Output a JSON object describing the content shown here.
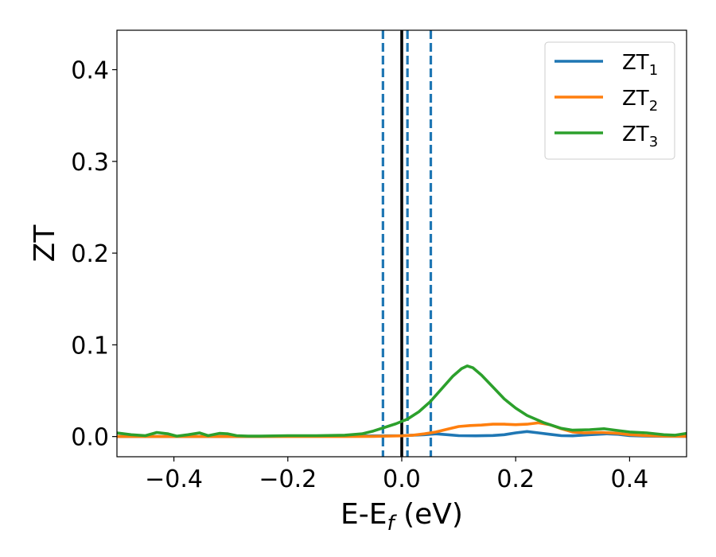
{
  "chart_data": {
    "type": "line",
    "xlabel": {
      "base": "E-E",
      "sub": "f",
      "unit": " (eV)"
    },
    "ylabel": "ZT",
    "xlim": [
      -0.5,
      0.5
    ],
    "ylim": [
      -0.022,
      0.443
    ],
    "xticks": [
      -0.4,
      -0.2,
      0.0,
      0.2,
      0.4
    ],
    "xtick_labels": [
      "−0.4",
      "−0.2",
      "0.0",
      "0.2",
      "0.4"
    ],
    "yticks": [
      0.0,
      0.1,
      0.2,
      0.3,
      0.4
    ],
    "ytick_labels": [
      "0.0",
      "0.1",
      "0.2",
      "0.3",
      "0.4"
    ],
    "grid": false,
    "legend_position": "top-right",
    "vertical_lines": [
      {
        "x": -0.033,
        "style": "dashed",
        "color": "#1f77b4"
      },
      {
        "x": 0.01,
        "style": "dashed",
        "color": "#1f77b4"
      },
      {
        "x": 0.051,
        "style": "dashed",
        "color": "#1f77b4"
      },
      {
        "x": 0.0,
        "style": "solid",
        "color": "#000000"
      }
    ],
    "series": [
      {
        "name": "ZT",
        "sub": "1",
        "color": "#1f77b4",
        "x": [
          -0.5,
          -0.45,
          -0.4,
          -0.35,
          -0.3,
          -0.25,
          -0.2,
          -0.15,
          -0.1,
          -0.05,
          0.0,
          0.02,
          0.04,
          0.06,
          0.08,
          0.1,
          0.13,
          0.16,
          0.18,
          0.2,
          0.22,
          0.24,
          0.26,
          0.28,
          0.3,
          0.33,
          0.36,
          0.38,
          0.4,
          0.43,
          0.46,
          0.5
        ],
        "y": [
          0.0,
          0.0,
          0.0,
          0.0,
          0.0,
          0.0,
          0.0005,
          0.0005,
          0.0005,
          0.0007,
          0.001,
          0.0015,
          0.002,
          0.003,
          0.002,
          0.001,
          0.0008,
          0.0012,
          0.002,
          0.004,
          0.0055,
          0.004,
          0.0025,
          0.001,
          0.0008,
          0.002,
          0.003,
          0.0025,
          0.001,
          0.0005,
          0.0003,
          0.0002
        ]
      },
      {
        "name": "ZT",
        "sub": "2",
        "color": "#ff7f0e",
        "x": [
          -0.5,
          -0.45,
          -0.4,
          -0.35,
          -0.3,
          -0.25,
          -0.2,
          -0.15,
          -0.1,
          -0.05,
          0.0,
          0.02,
          0.04,
          0.06,
          0.08,
          0.1,
          0.12,
          0.14,
          0.16,
          0.18,
          0.2,
          0.22,
          0.24,
          0.26,
          0.28,
          0.3,
          0.32,
          0.35,
          0.38,
          0.4,
          0.43,
          0.46,
          0.5
        ],
        "y": [
          0.0,
          0.0,
          0.0,
          0.0,
          0.0,
          0.0,
          0.0,
          0.0,
          0.0,
          0.0002,
          0.0008,
          0.0015,
          0.003,
          0.005,
          0.008,
          0.011,
          0.012,
          0.0125,
          0.0135,
          0.0135,
          0.013,
          0.0135,
          0.015,
          0.013,
          0.0085,
          0.005,
          0.004,
          0.0045,
          0.0035,
          0.002,
          0.001,
          0.0005,
          0.0003
        ]
      },
      {
        "name": "ZT",
        "sub": "3",
        "color": "#2ca02c",
        "x": [
          -0.5,
          -0.475,
          -0.45,
          -0.43,
          -0.41,
          -0.395,
          -0.375,
          -0.355,
          -0.34,
          -0.32,
          -0.305,
          -0.29,
          -0.27,
          -0.25,
          -0.2,
          -0.15,
          -0.1,
          -0.07,
          -0.05,
          -0.03,
          -0.01,
          0.01,
          0.03,
          0.05,
          0.07,
          0.09,
          0.105,
          0.115,
          0.125,
          0.14,
          0.16,
          0.18,
          0.2,
          0.22,
          0.25,
          0.28,
          0.3,
          0.33,
          0.355,
          0.38,
          0.4,
          0.43,
          0.46,
          0.48,
          0.5
        ],
        "y": [
          0.004,
          0.002,
          0.001,
          0.0045,
          0.003,
          0.0005,
          0.002,
          0.004,
          0.001,
          0.0035,
          0.003,
          0.001,
          0.0005,
          0.0005,
          0.001,
          0.001,
          0.0015,
          0.003,
          0.006,
          0.01,
          0.014,
          0.019,
          0.027,
          0.038,
          0.052,
          0.066,
          0.074,
          0.077,
          0.075,
          0.067,
          0.054,
          0.041,
          0.031,
          0.023,
          0.015,
          0.009,
          0.007,
          0.0075,
          0.0085,
          0.0065,
          0.005,
          0.004,
          0.002,
          0.0015,
          0.0035
        ]
      }
    ]
  }
}
